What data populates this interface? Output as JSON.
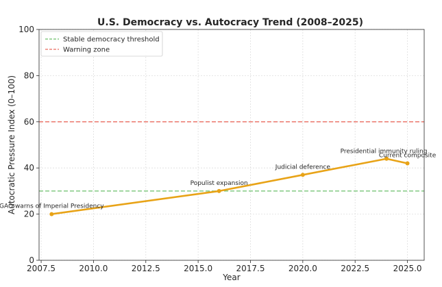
{
  "chart_data": {
    "type": "line",
    "title": "U.S. Democracy vs. Autocracy Trend (2008–2025)",
    "xlabel": "Year",
    "ylabel": "Autocratic Pressure Index (0–100)",
    "xlim": [
      2007.4,
      2025.8
    ],
    "ylim": [
      0,
      100
    ],
    "xticks": [
      2007.5,
      2010.0,
      2012.5,
      2015.0,
      2017.5,
      2020.0,
      2022.5,
      2025.0
    ],
    "xtick_labels": [
      "2007.5",
      "2010.0",
      "2012.5",
      "2015.0",
      "2017.5",
      "2020.0",
      "2022.5",
      "2025.0"
    ],
    "yticks": [
      0,
      20,
      40,
      60,
      80,
      100
    ],
    "ytick_labels": [
      "0",
      "20",
      "40",
      "60",
      "80",
      "100"
    ],
    "grid": true,
    "series": [
      {
        "name": "Autocratic Pressure Index",
        "color": "#e8a317",
        "points": [
          {
            "x": 2008,
            "y": 20,
            "label": "GAO warns of Imperial Presidency"
          },
          {
            "x": 2016,
            "y": 30,
            "label": "Populist expansion"
          },
          {
            "x": 2020,
            "y": 37,
            "label": "Judicial deference"
          },
          {
            "x": 2024,
            "y": 44,
            "label": "Presidential immunity ruling"
          },
          {
            "x": 2025,
            "y": 42,
            "label": "Current composite"
          }
        ]
      }
    ],
    "reference_lines": [
      {
        "name": "Stable democracy threshold",
        "y": 30,
        "color": "#6abf69",
        "style": "dashed"
      },
      {
        "name": "Warning zone",
        "y": 60,
        "color": "#ea6a5e",
        "style": "dashed"
      }
    ],
    "legend_position": "top-left"
  }
}
